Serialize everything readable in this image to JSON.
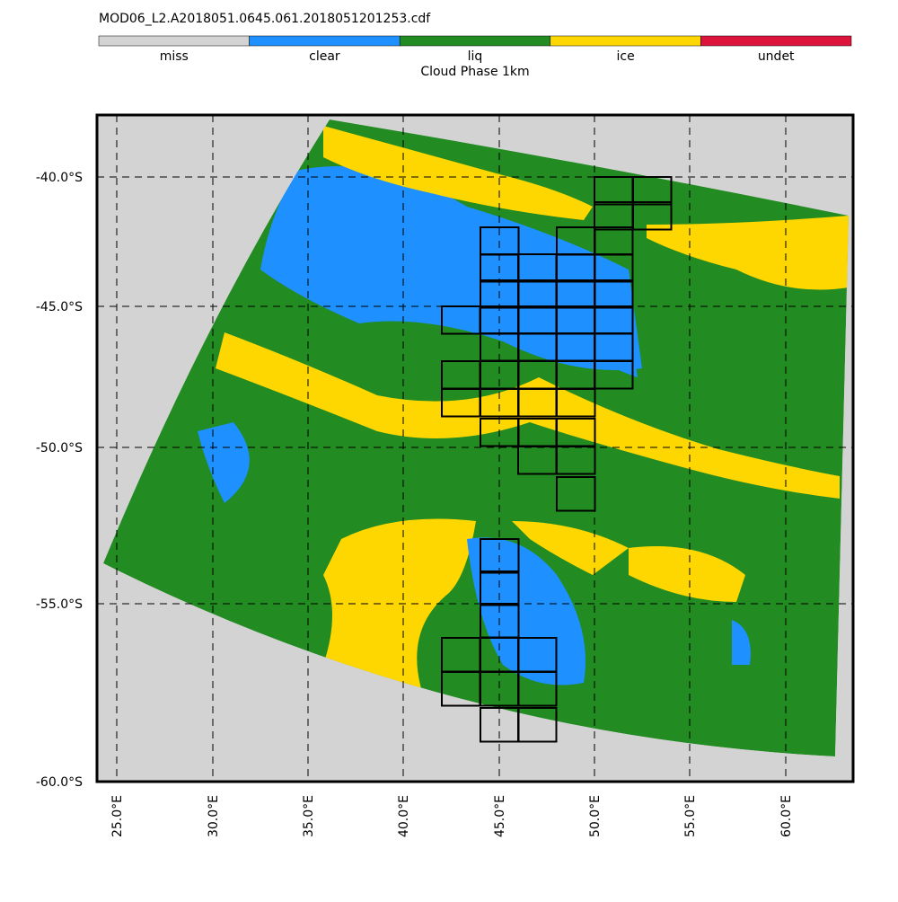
{
  "header": {
    "title": "MOD06_L2.A2018051.0645.061.2018051201253.cdf"
  },
  "legend": {
    "title": "Cloud Phase 1km",
    "entries": [
      {
        "label": "miss",
        "color": "#d3d3d3"
      },
      {
        "label": "clear",
        "color": "#1e90ff"
      },
      {
        "label": "liq",
        "color": "#228b22"
      },
      {
        "label": "ice",
        "color": "#ffd700"
      },
      {
        "label": "undet",
        "color": "#dc143c"
      }
    ]
  },
  "map": {
    "lat_labels": [
      "-40.0°S",
      "-45.0°S",
      "-50.0°S",
      "-55.0°S",
      "-60.0°S"
    ],
    "lon_labels": [
      "25.0°E",
      "30.0°E",
      "35.0°E",
      "40.0°E",
      "45.0°E",
      "50.0°E",
      "55.0°E",
      "60.0°E"
    ]
  }
}
